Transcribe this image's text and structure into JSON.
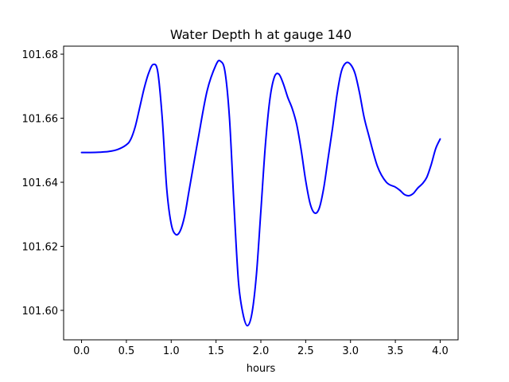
{
  "chart_data": {
    "type": "line",
    "title": "Water Depth h at gauge 140",
    "xlabel": "hours",
    "ylabel": "",
    "xlim": [
      -0.2,
      4.2
    ],
    "ylim": [
      101.5908,
      101.6825
    ],
    "xticks": [
      0.0,
      0.5,
      1.0,
      1.5,
      2.0,
      2.5,
      3.0,
      3.5,
      4.0
    ],
    "xtick_labels": [
      "0.0",
      "0.5",
      "1.0",
      "1.5",
      "2.0",
      "2.5",
      "3.0",
      "3.5",
      "4.0"
    ],
    "yticks": [
      101.6,
      101.62,
      101.64,
      101.66,
      101.68
    ],
    "ytick_labels": [
      "101.60",
      "101.62",
      "101.64",
      "101.66",
      "101.68"
    ],
    "grid": false,
    "series": [
      {
        "color": "#0000ff",
        "x": [
          0.0,
          0.1,
          0.2,
          0.3,
          0.4,
          0.5,
          0.55,
          0.6,
          0.65,
          0.7,
          0.75,
          0.8,
          0.85,
          0.9,
          0.95,
          1.0,
          1.05,
          1.1,
          1.15,
          1.2,
          1.3,
          1.4,
          1.5,
          1.55,
          1.6,
          1.65,
          1.7,
          1.75,
          1.8,
          1.85,
          1.9,
          1.95,
          2.0,
          2.05,
          2.1,
          2.15,
          2.2,
          2.25,
          2.3,
          2.35,
          2.4,
          2.45,
          2.5,
          2.55,
          2.6,
          2.65,
          2.7,
          2.75,
          2.8,
          2.85,
          2.9,
          2.95,
          3.0,
          3.05,
          3.1,
          3.15,
          3.2,
          3.3,
          3.4,
          3.5,
          3.55,
          3.6,
          3.65,
          3.7,
          3.75,
          3.8,
          3.85,
          3.9,
          3.95,
          4.0
        ],
        "y": [
          101.6493,
          101.6493,
          101.6494,
          101.6496,
          101.6502,
          101.6517,
          101.6535,
          101.6575,
          101.6635,
          101.6695,
          101.6742,
          101.6768,
          101.6745,
          101.66,
          101.638,
          101.627,
          101.6237,
          101.6248,
          101.6295,
          101.6375,
          101.6535,
          101.6685,
          101.6767,
          101.6778,
          101.6745,
          101.66,
          101.633,
          101.609,
          101.599,
          101.5952,
          101.599,
          101.611,
          101.631,
          101.6515,
          101.6658,
          101.6728,
          101.6738,
          101.6708,
          101.6665,
          101.663,
          101.658,
          101.65,
          101.6405,
          101.6333,
          101.6304,
          101.6318,
          101.638,
          101.6475,
          101.657,
          101.6675,
          101.6748,
          101.6773,
          101.6768,
          101.674,
          101.668,
          101.6605,
          101.655,
          101.645,
          101.64,
          101.6385,
          101.6375,
          101.6362,
          101.6358,
          101.6365,
          101.6382,
          101.6395,
          101.6415,
          101.6455,
          101.6505,
          101.6535
        ]
      }
    ]
  }
}
